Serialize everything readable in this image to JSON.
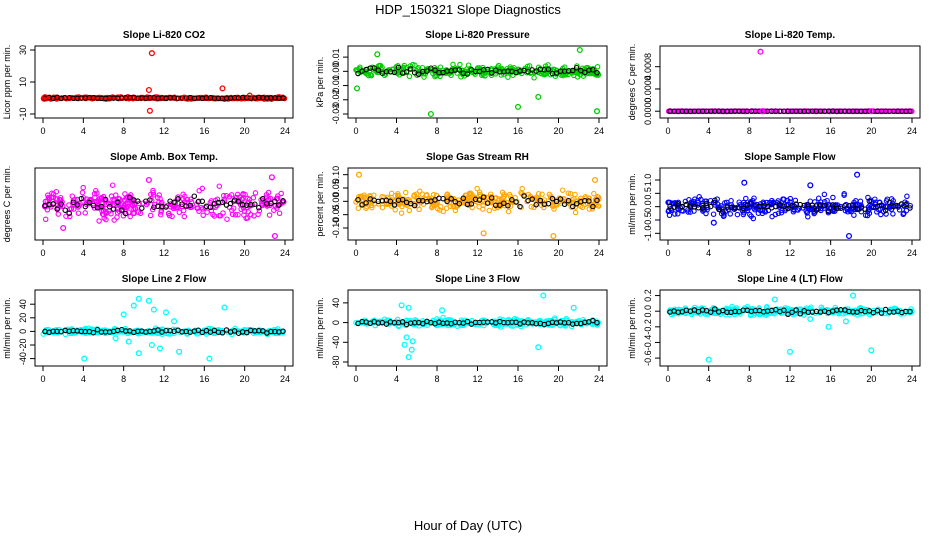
{
  "figure": {
    "title": "HDP_150321  Slope Diagnostics",
    "xlabel": "Hour of Day (UTC)"
  },
  "chart_data": [
    {
      "type": "scatter",
      "title": "Slope Li-820 CO2",
      "xlabel": "",
      "ylabel": "Licor ppm per min.",
      "xlim": [
        0,
        24
      ],
      "ylim": [
        -10,
        30
      ],
      "xticks": [
        0,
        4,
        8,
        12,
        16,
        20,
        24
      ],
      "yticks": [
        -10,
        10,
        30
      ],
      "ytick_labels": [
        "-10",
        "10",
        "30"
      ],
      "color": "#ff0000",
      "spread": 0.6,
      "series": [
        {
          "name": "slope",
          "color": "#ff0000",
          "points": [
            [
              10.8,
              28
            ],
            [
              10.6,
              -8
            ],
            [
              10.5,
              5
            ],
            [
              17.8,
              6
            ],
            [
              0.2,
              0.5
            ],
            [
              20.5,
              1.5
            ],
            [
              14,
              0.3
            ]
          ]
        }
      ]
    },
    {
      "type": "scatter",
      "title": "Slope Li-820 Pressure",
      "xlabel": "",
      "ylabel": "kPa per min.",
      "xlim": [
        0,
        24
      ],
      "ylim": [
        -0.03,
        0.015
      ],
      "xticks": [
        0,
        4,
        8,
        12,
        16,
        20,
        24
      ],
      "yticks": [
        -0.03,
        -0.02,
        -0.01,
        0.0,
        0.01
      ],
      "ytick_labels": [
        "-0.03",
        "-0.02",
        "-0.01",
        "0.00",
        "0.01"
      ],
      "color": "#00cc00",
      "spread": 0.004,
      "series": [
        {
          "name": "slope",
          "color": "#00cc00",
          "points": [
            [
              2.1,
              0.012
            ],
            [
              22.1,
              0.015
            ],
            [
              7.4,
              -0.03
            ],
            [
              23.8,
              -0.028
            ],
            [
              16.0,
              -0.025
            ],
            [
              18.0,
              -0.018
            ],
            [
              0.1,
              -0.012
            ]
          ]
        }
      ]
    },
    {
      "type": "scatter",
      "title": "Slope Li-820 Temp.",
      "xlabel": "",
      "ylabel": "degrees C per min.",
      "xlim": [
        0,
        24
      ],
      "ylim": [
        -5e-05,
        0.0011
      ],
      "xticks": [
        0,
        4,
        8,
        12,
        16,
        20,
        24
      ],
      "yticks": [
        0.0,
        0.0004,
        0.0008
      ],
      "ytick_labels": [
        "0.0000",
        "0.0004",
        "0.0008"
      ],
      "color": "#ff00ff",
      "spread": 5e-06,
      "series": [
        {
          "name": "slope",
          "color": "#ff00ff",
          "points": [
            [
              9.1,
              0.00107
            ],
            [
              20.0,
              0.0
            ],
            [
              9.3,
              0.0
            ]
          ]
        }
      ]
    },
    {
      "type": "scatter",
      "title": "Slope Amb. Box Temp.",
      "xlabel": "",
      "ylabel": "degrees C per min.",
      "xlim": [
        0,
        24
      ],
      "ylim": [
        -0.012,
        0.012
      ],
      "xticks": [
        0,
        4,
        8,
        12,
        16,
        20,
        24
      ],
      "yticks": [],
      "ytick_labels": [],
      "color": "#ff00ff",
      "spread": 0.005,
      "series": [
        {
          "name": "slope",
          "color": "#ff00ff",
          "points": [
            [
              23.0,
              -0.012
            ],
            [
              22.7,
              0.01
            ],
            [
              2.0,
              -0.009
            ],
            [
              10.5,
              0.009
            ]
          ]
        }
      ]
    },
    {
      "type": "scatter",
      "title": "Slope Gas Stream RH",
      "xlabel": "",
      "ylabel": "percent per min.",
      "xlim": [
        0,
        24
      ],
      "ylim": [
        -0.13,
        0.11
      ],
      "xticks": [
        0,
        4,
        8,
        12,
        16,
        20,
        24
      ],
      "yticks": [
        -0.1,
        -0.05,
        0.0,
        0.05,
        0.1
      ],
      "ytick_labels": [
        "-0.10",
        "-0.05",
        "0.00",
        "0.05",
        "0.10"
      ],
      "color": "#ffa500",
      "spread": 0.035,
      "series": [
        {
          "name": "slope",
          "color": "#ffa500",
          "points": [
            [
              0.3,
              0.1
            ],
            [
              12.6,
              -0.12
            ],
            [
              19.5,
              -0.13
            ],
            [
              23.6,
              0.08
            ]
          ]
        }
      ]
    },
    {
      "type": "scatter",
      "title": "Slope Sample Flow",
      "xlabel": "",
      "ylabel": "ml/min per min.",
      "xlim": [
        0,
        24
      ],
      "ylim": [
        -1.1,
        1.3
      ],
      "xticks": [
        0,
        4,
        8,
        12,
        16,
        20,
        24
      ],
      "yticks": [
        -1.0,
        -0.5,
        0.0,
        0.5,
        1.0
      ],
      "ytick_labels": [
        "-1.0",
        "-0.5",
        "0.0",
        "0.5",
        "1.0"
      ],
      "color": "#0000ff",
      "spread": 0.35,
      "series": [
        {
          "name": "slope",
          "color": "#0000ff",
          "points": [
            [
              18.6,
              1.2
            ],
            [
              17.8,
              -1.1
            ],
            [
              7.5,
              0.9
            ],
            [
              14.0,
              0.8
            ],
            [
              4.5,
              -0.6
            ]
          ]
        }
      ]
    },
    {
      "type": "scatter",
      "title": "Slope Line 2 Flow",
      "xlabel": "",
      "ylabel": "ml/min per min.",
      "xlim": [
        0,
        24
      ],
      "ylim": [
        -45,
        55
      ],
      "xticks": [
        0,
        4,
        8,
        12,
        16,
        20,
        24
      ],
      "yticks": [
        -40,
        -20,
        0,
        20,
        40
      ],
      "ytick_labels": [
        "-40",
        "-20",
        "0",
        "20",
        "40"
      ],
      "color": "#00ffff",
      "spread": 4,
      "series": [
        {
          "name": "slope",
          "color": "#00ffff",
          "points": [
            [
              9.5,
              48
            ],
            [
              10.5,
              45
            ],
            [
              9.0,
              38
            ],
            [
              11.0,
              32
            ],
            [
              8.0,
              25
            ],
            [
              12.2,
              28
            ],
            [
              13.5,
              -30
            ],
            [
              16.5,
              -40
            ],
            [
              4.1,
              -40
            ],
            [
              9.5,
              -32
            ],
            [
              10.8,
              -20
            ],
            [
              8.5,
              -15
            ],
            [
              18.0,
              35
            ],
            [
              13.0,
              15
            ],
            [
              7.2,
              -10
            ],
            [
              11.6,
              -25
            ]
          ]
        }
      ]
    },
    {
      "type": "scatter",
      "title": "Slope Line 3 Flow",
      "xlabel": "",
      "ylabel": "ml/min per min.",
      "xlim": [
        0,
        24
      ],
      "ylim": [
        -80,
        58
      ],
      "xticks": [
        0,
        4,
        8,
        12,
        16,
        20,
        24
      ],
      "yticks": [
        -80,
        -40,
        0,
        40
      ],
      "ytick_labels": [
        "-80",
        "-40",
        "0",
        "40"
      ],
      "color": "#00ffff",
      "spread": 7,
      "series": [
        {
          "name": "slope",
          "color": "#00ffff",
          "points": [
            [
              5.2,
              -70
            ],
            [
              5.5,
              -55
            ],
            [
              4.8,
              -45
            ],
            [
              5.6,
              -38
            ],
            [
              5.0,
              -30
            ],
            [
              4.5,
              35
            ],
            [
              5.2,
              30
            ],
            [
              18.5,
              55
            ],
            [
              18.0,
              -50
            ],
            [
              8.5,
              25
            ],
            [
              21.5,
              30
            ]
          ]
        }
      ]
    },
    {
      "type": "scatter",
      "title": "Slope Line 4 (LT) Flow",
      "xlabel": "",
      "ylabel": "ml/min per min.",
      "xlim": [
        0,
        24
      ],
      "ylim": [
        -0.65,
        0.22
      ],
      "xticks": [
        0,
        4,
        8,
        12,
        16,
        20,
        24
      ],
      "yticks": [
        -0.6,
        -0.4,
        -0.2,
        0.0,
        0.2
      ],
      "ytick_labels": [
        "-0.6",
        "-0.4",
        "-0.2",
        "0.0",
        "0.2"
      ],
      "color": "#00ffff",
      "spread": 0.05,
      "series": [
        {
          "name": "slope",
          "color": "#00ffff",
          "points": [
            [
              4.0,
              -0.62
            ],
            [
              12.0,
              -0.52
            ],
            [
              20.0,
              -0.5
            ],
            [
              18.2,
              0.2
            ],
            [
              17.5,
              -0.13
            ],
            [
              15.8,
              -0.2
            ],
            [
              10.5,
              0.15
            ],
            [
              14.0,
              -0.1
            ]
          ]
        }
      ]
    }
  ]
}
